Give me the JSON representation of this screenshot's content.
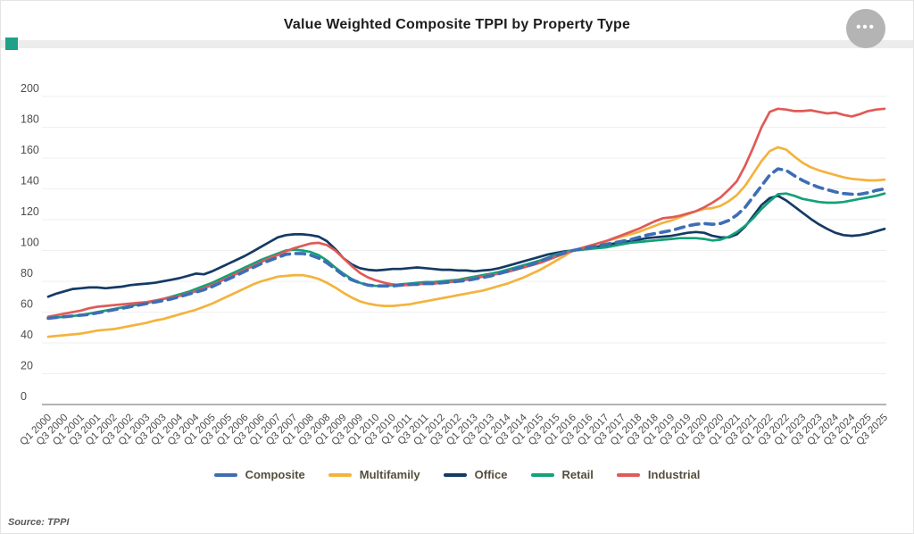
{
  "header": {
    "title": "Value Weighted Composite TPPI by Property Type",
    "menu_button": "more options"
  },
  "footer": {
    "source": "Source: TPPI"
  },
  "accent_color": "#1fa187",
  "chart_data": {
    "type": "line",
    "title": "Value Weighted Composite TPPI by Property Type",
    "xlabel": "",
    "ylabel": "",
    "ylim": [
      0,
      200
    ],
    "y_ticks": [
      0,
      20,
      40,
      60,
      80,
      100,
      120,
      140,
      160,
      180,
      200
    ],
    "grid": true,
    "legend_position": "bottom",
    "x_frequency": "quarterly",
    "x_first": "Q1 2000",
    "x_last": "Q3 2025",
    "x_tick_every": 2,
    "x_tick_labels": [
      "Q1 2000",
      "Q3 2000",
      "Q1 2001",
      "Q3 2001",
      "Q1 2002",
      "Q3 2002",
      "Q1 2003",
      "Q3 2003",
      "Q1 2004",
      "Q3 2004",
      "Q1 2005",
      "Q3 2005",
      "Q1 2006",
      "Q3 2006",
      "Q1 2007",
      "Q3 2007",
      "Q1 2008",
      "Q3 2008",
      "Q1 2009",
      "Q3 2009",
      "Q1 2010",
      "Q3 2010",
      "Q1 2011",
      "Q3 2011",
      "Q1 2012",
      "Q3 2012",
      "Q1 2013",
      "Q3 2013",
      "Q1 2014",
      "Q3 2014",
      "Q1 2015",
      "Q3 2015",
      "Q1 2016",
      "Q3 2016",
      "Q1 2017",
      "Q3 2017",
      "Q1 2018",
      "Q3 2018",
      "Q1 2019",
      "Q3 2019",
      "Q1 2020",
      "Q3 2020",
      "Q1 2021",
      "Q3 2021",
      "Q1 2022",
      "Q3 2022",
      "Q1 2023",
      "Q3 2023",
      "Q1 2024",
      "Q3 2024",
      "Q1 2025",
      "Q3 2025"
    ],
    "series": [
      {
        "name": "Composite",
        "color": "#3d6eb4",
        "style": "dashed",
        "values": [
          56,
          56.5,
          57,
          57.5,
          58,
          58.5,
          59.5,
          60.5,
          61.5,
          62.5,
          63.5,
          64.5,
          65.5,
          66.5,
          67.5,
          68.5,
          70,
          71.5,
          73,
          74.5,
          76.5,
          79,
          81.5,
          84,
          86.5,
          89,
          91.5,
          93.5,
          95.5,
          97.5,
          98,
          98,
          97,
          95,
          92,
          88,
          84,
          81,
          79,
          77.5,
          77,
          77,
          77,
          77.5,
          78,
          78,
          78.5,
          78.5,
          79,
          79.5,
          80,
          80.5,
          81.5,
          82.5,
          83.5,
          85,
          86.5,
          88,
          89.5,
          91,
          93,
          95,
          97,
          98.5,
          100,
          101,
          102,
          103,
          104,
          105,
          106,
          107,
          108.5,
          110,
          111,
          112,
          113,
          114.5,
          116,
          117,
          117.5,
          117,
          117.5,
          119.5,
          123,
          128,
          135,
          142,
          149,
          153,
          152,
          148.5,
          145.5,
          143,
          141,
          139.5,
          138,
          137,
          136.5,
          136.5,
          137.5,
          139,
          140
        ]
      },
      {
        "name": "Multifamily",
        "color": "#f3b33d",
        "style": "solid",
        "values": [
          44,
          44.5,
          45,
          45.5,
          46,
          47,
          48,
          48.5,
          49,
          50,
          51,
          52,
          53,
          54.5,
          55.5,
          57,
          58.5,
          60,
          61.5,
          63.5,
          65.5,
          68,
          70.5,
          73,
          75.5,
          78,
          80,
          81.5,
          83,
          83.5,
          84,
          84,
          83,
          81.5,
          79,
          76,
          72.5,
          69.5,
          67,
          65.5,
          64.5,
          64,
          64,
          64.5,
          65,
          66,
          67,
          68,
          69,
          70,
          71,
          72,
          73,
          74,
          75.5,
          77,
          78.5,
          80.5,
          82.5,
          85,
          87.5,
          90.5,
          93.5,
          96.5,
          100,
          101.5,
          103,
          104.5,
          106,
          107.5,
          109,
          110.5,
          112,
          114,
          116,
          118,
          119.5,
          121.5,
          123.5,
          125.5,
          127,
          127.5,
          129,
          132,
          136,
          142,
          150,
          158,
          164.5,
          167,
          165.5,
          161,
          157,
          154,
          152,
          150.5,
          149,
          147.5,
          146.5,
          146,
          145.5,
          145.5,
          146
        ]
      },
      {
        "name": "Office",
        "color": "#153a64",
        "style": "solid",
        "values": [
          70,
          72,
          73.5,
          75,
          75.5,
          76,
          76,
          75.5,
          76,
          76.5,
          77.5,
          78,
          78.5,
          79,
          80,
          81,
          82,
          83.5,
          85,
          84.5,
          86.5,
          89,
          91.5,
          94,
          96.5,
          99.5,
          102.5,
          105.5,
          108.5,
          110,
          110.5,
          110.5,
          110,
          109,
          106,
          101,
          95,
          91,
          88.5,
          87.5,
          87,
          87.5,
          88,
          88,
          88.5,
          89,
          88.5,
          88,
          87.5,
          87.5,
          87,
          87,
          86.5,
          87,
          87.5,
          88.5,
          90,
          91.5,
          93,
          94.5,
          96,
          97.5,
          98.5,
          99.5,
          100,
          100.5,
          101.5,
          102.5,
          103.5,
          104.5,
          105.5,
          106,
          107,
          108,
          108.5,
          109,
          109.5,
          110.5,
          111.5,
          112,
          111.5,
          109.5,
          108.5,
          108.5,
          110.5,
          115.5,
          122.5,
          129.5,
          134,
          135.5,
          132.5,
          128.5,
          124.5,
          120.5,
          117,
          114,
          111.5,
          110,
          109.5,
          110,
          111,
          112.5,
          114
        ]
      },
      {
        "name": "Retail",
        "color": "#13a178",
        "style": "solid",
        "values": [
          56,
          56.5,
          57,
          57.5,
          58,
          59,
          60,
          61,
          62,
          63,
          64,
          65,
          66,
          67,
          68.5,
          70,
          71.5,
          73,
          75,
          77,
          79,
          81.5,
          84,
          86.5,
          89,
          91.5,
          94,
          96,
          98,
          100,
          100.5,
          100,
          99,
          97,
          93.5,
          89,
          85,
          81.5,
          79,
          77.5,
          77,
          77,
          77.5,
          78,
          78.5,
          79,
          79.5,
          79.5,
          80,
          80.5,
          81,
          82,
          83,
          84,
          85,
          86,
          87.5,
          89,
          90.5,
          92,
          93.5,
          95.5,
          97.5,
          99,
          100,
          100.5,
          101,
          101.5,
          102,
          103,
          104,
          105,
          105.5,
          106,
          106.5,
          107,
          107.5,
          108,
          108,
          108,
          107.5,
          106.5,
          107,
          109,
          112,
          116,
          121,
          127,
          132,
          136.5,
          137,
          135.5,
          133.5,
          132.5,
          131.5,
          131,
          131,
          131.5,
          132.5,
          133.5,
          134.5,
          135.5,
          137
        ]
      },
      {
        "name": "Industrial",
        "color": "#e05a57",
        "style": "solid",
        "values": [
          57,
          58,
          59,
          60,
          61,
          62.5,
          63.5,
          64,
          64.5,
          65,
          65.5,
          66,
          66.5,
          67.5,
          68.5,
          69.5,
          70.5,
          72,
          73.5,
          75.5,
          77.5,
          80,
          82.5,
          85,
          87.5,
          90,
          92.5,
          95,
          97,
          99.5,
          101.5,
          103,
          104.5,
          105,
          103.5,
          100,
          95,
          90,
          85.5,
          82.5,
          80.5,
          79,
          78,
          77.5,
          77.5,
          78,
          78.5,
          78.5,
          79,
          79.5,
          80.5,
          81,
          82,
          83,
          84,
          85,
          86,
          87.5,
          89,
          90.5,
          92,
          94,
          96,
          98,
          100,
          101.5,
          103,
          104.5,
          106,
          108,
          110,
          112,
          114,
          116.5,
          119,
          121,
          121.5,
          122.5,
          124,
          125.5,
          128,
          131,
          134.5,
          139.5,
          145,
          155,
          167,
          180,
          190,
          192,
          191.5,
          190.5,
          190.5,
          191,
          190,
          189,
          189.5,
          188,
          187,
          188.5,
          190.5,
          191.5,
          192
        ]
      }
    ]
  }
}
